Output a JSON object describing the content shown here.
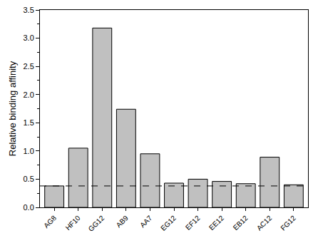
{
  "chart_data": {
    "type": "bar",
    "y_label": "Relative binding affinity",
    "categories": [
      "AG8",
      "HF10",
      "GG12",
      "AB9",
      "AA7",
      "EG12",
      "EF12",
      "EE12",
      "EB12",
      "AC12",
      "FG12"
    ],
    "values": [
      0.38,
      1.05,
      3.18,
      1.74,
      0.95,
      0.43,
      0.5,
      0.46,
      0.42,
      0.89,
      0.4
    ],
    "color": "#c0c0c0",
    "reference_line": 0.38,
    "ylim": [
      0,
      3.5
    ],
    "yticks": [
      {
        "value": 0,
        "label": "0.0"
      },
      {
        "value": 0.5,
        "label": "0.5"
      },
      {
        "value": 1,
        "label": "1.0"
      },
      {
        "value": 1.5,
        "label": "1.5"
      },
      {
        "value": 2,
        "label": "2.0"
      },
      {
        "value": 2.5,
        "label": "2.5"
      },
      {
        "value": 3,
        "label": "3.0"
      },
      {
        "value": 3.5,
        "label": "3.5"
      }
    ],
    "grid": false
  }
}
